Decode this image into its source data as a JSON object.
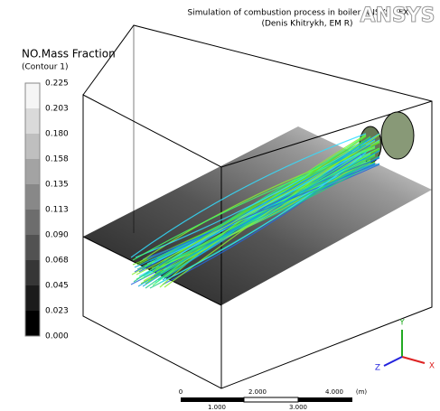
{
  "header": {
    "title": "Simulation of combustion process in boiler ANSYS CFX",
    "author": "(Denis Khitrykh, EM R)",
    "logo": "ANSYS"
  },
  "legend": {
    "title": "NO.Mass Fraction",
    "subtitle": "(Contour 1)",
    "labels": [
      "0.225",
      "0.203",
      "0.180",
      "0.158",
      "0.135",
      "0.113",
      "0.090",
      "0.068",
      "0.045",
      "0.023",
      "0.000"
    ]
  },
  "scale_bar": {
    "top_labels": [
      "0",
      "2.000",
      "4.000",
      "(m)"
    ],
    "bottom_labels": [
      "1.000",
      "3.000"
    ]
  },
  "axes": {
    "y": "Y",
    "z": "Z",
    "x": "X"
  }
}
